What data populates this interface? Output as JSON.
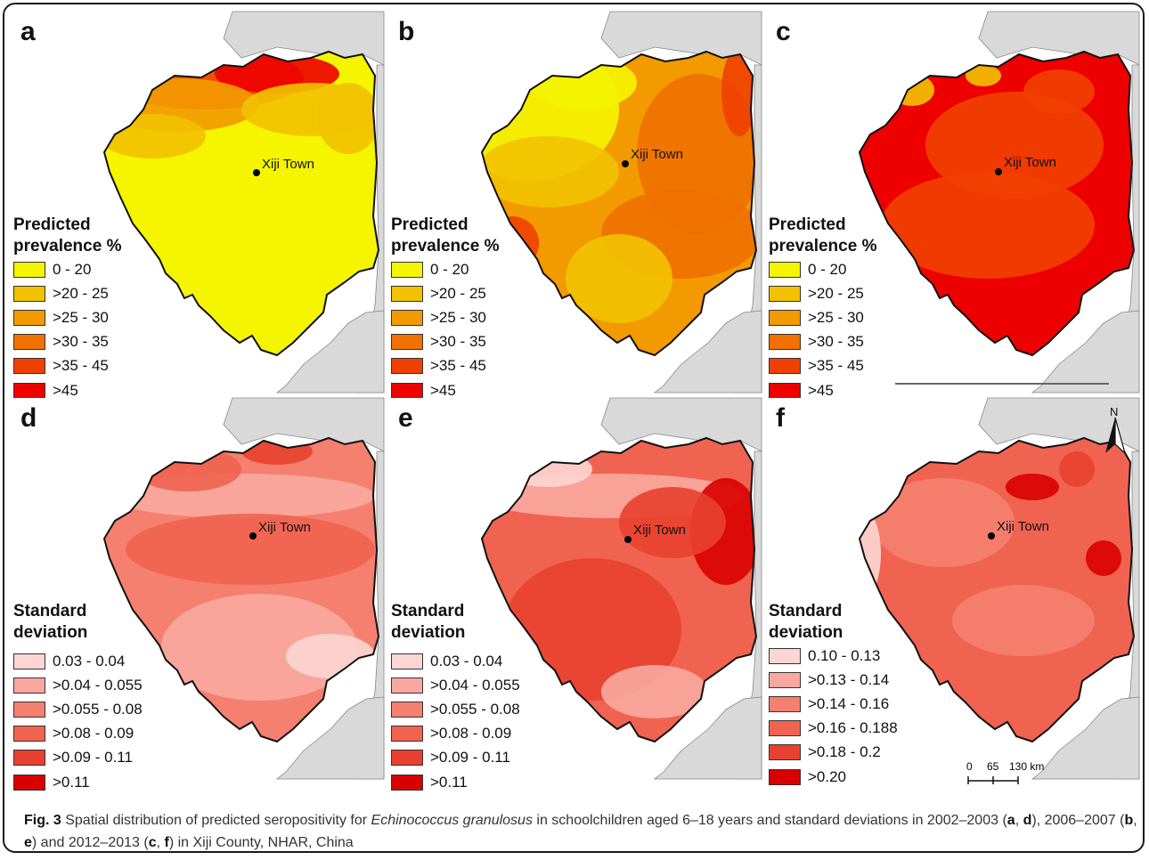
{
  "figure": {
    "panels": [
      {
        "letter": "a",
        "legend_title_lines": [
          "Predicted",
          "prevalence %"
        ],
        "town": "Xiji Town",
        "variant": "prevalence_low"
      },
      {
        "letter": "b",
        "legend_title_lines": [
          "Predicted",
          "prevalence %"
        ],
        "town": "Xiji Town",
        "variant": "prevalence_mid"
      },
      {
        "letter": "c",
        "legend_title_lines": [
          "Predicted",
          "prevalence %"
        ],
        "town": "Xiji Town",
        "variant": "prevalence_high"
      },
      {
        "letter": "d",
        "legend_title_lines": [
          "Standard",
          "deviation"
        ],
        "town": "Xiji Town",
        "variant": "sd_low"
      },
      {
        "letter": "e",
        "legend_title_lines": [
          "Standard",
          "deviation"
        ],
        "town": "Xiji Town",
        "variant": "sd_mid"
      },
      {
        "letter": "f",
        "legend_title_lines": [
          "Standard",
          "deviation"
        ],
        "town": "Xiji Town",
        "variant": "sd_high"
      }
    ],
    "legends": {
      "prevalence": {
        "labels": [
          "0 - 20",
          ">20 - 25",
          ">25 - 30",
          ">30 - 35",
          ">35 - 45",
          ">45"
        ],
        "colors": [
          "#f5f500",
          "#f2c200",
          "#f39a00",
          "#f07000",
          "#f04000",
          "#ee0000"
        ]
      },
      "sd_2002_2007": {
        "labels": [
          "0.03 - 0.04",
          ">0.04 - 0.055",
          ">0.055 - 0.08",
          ">0.08 - 0.09",
          ">0.09 - 0.11",
          ">0.11"
        ],
        "colors": [
          "#fcd6d2",
          "#f9a8a0",
          "#f5806f",
          "#f06350",
          "#e8412f",
          "#d90000"
        ]
      },
      "sd_2012_2013": {
        "labels": [
          "0.10 - 0.13",
          ">0.13 - 0.14",
          ">0.14 - 0.16",
          ">0.16 - 0.188",
          ">0.18 - 0.2",
          ">0.20"
        ],
        "colors": [
          "#fcd6d2",
          "#f9a8a0",
          "#f5806f",
          "#f06350",
          "#e8412f",
          "#d90000"
        ]
      }
    },
    "scale_bar": {
      "ticks": [
        "0",
        "65",
        "130 km"
      ]
    },
    "north_arrow": {
      "label": "N"
    },
    "caption": {
      "label": "Fig. 3",
      "part1": " Spatial distribution of predicted seropositivity for ",
      "species": "Echinococcus granulosus",
      "part2": " in schoolchildren aged 6–18 years and standard deviations in 2002–2003 (",
      "p_a": "a",
      "sep1": ", ",
      "p_d": "d",
      "part3": "), 2006–2007 (",
      "p_b": "b",
      "sep2": ", ",
      "p_e": "e",
      "part4": ") and 2012–2013 (",
      "p_c": "c",
      "sep3": ", ",
      "p_f": "f",
      "part5": ") in Xiji County, NHAR, China"
    },
    "colors": {
      "neighbor": "#d9d9d9",
      "border": "#111111"
    }
  }
}
